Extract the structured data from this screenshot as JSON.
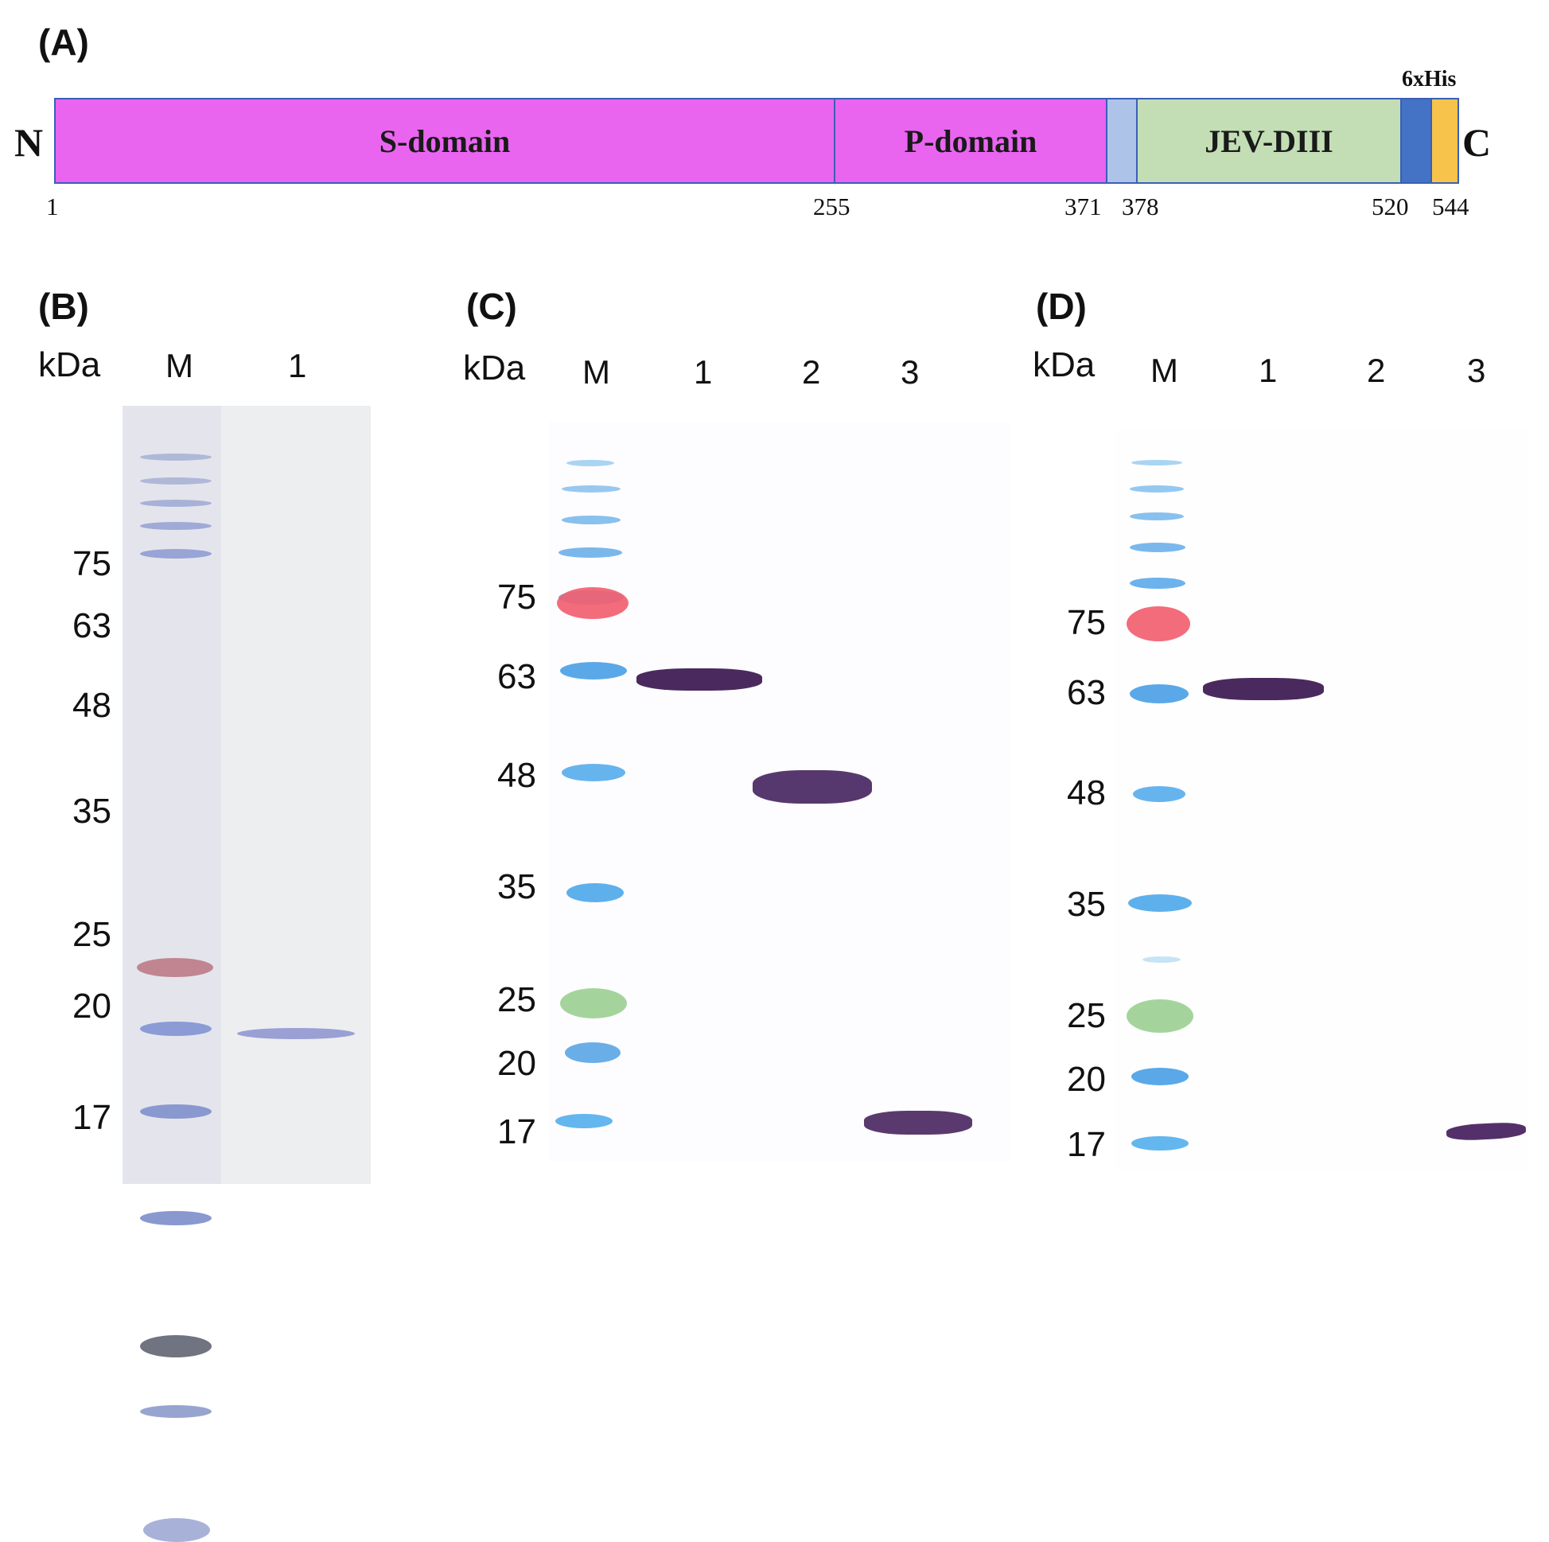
{
  "panel_a": {
    "label": "(A)",
    "n_terminus": "N",
    "c_terminus": "C",
    "tag_label": "6xHis",
    "segments": [
      {
        "name": "S-domain",
        "color": "#e965ef"
      },
      {
        "name": "P-domain",
        "color": "#e965ef"
      },
      {
        "name": "",
        "color": "#aec3e8"
      },
      {
        "name": "JEV-DIII",
        "color": "#c3deb5"
      },
      {
        "name": "",
        "color": "#4472c4"
      },
      {
        "name": "",
        "color": "#f7c34a"
      }
    ],
    "positions": [
      "1",
      "255",
      "371",
      "378",
      "520",
      "544"
    ]
  },
  "panel_b": {
    "label": "(B)",
    "kda_label": "kDa",
    "lanes": [
      "M",
      "1"
    ],
    "markers": [
      "75",
      "63",
      "48",
      "35",
      "25",
      "20",
      "17"
    ]
  },
  "panel_c": {
    "label": "(C)",
    "kda_label": "kDa",
    "lanes": [
      "M",
      "1",
      "2",
      "3"
    ],
    "markers": [
      "75",
      "63",
      "48",
      "35",
      "25",
      "20",
      "17"
    ]
  },
  "panel_d": {
    "label": "(D)",
    "kda_label": "kDa",
    "lanes": [
      "M",
      "1",
      "2",
      "3"
    ],
    "markers": [
      "75",
      "63",
      "48",
      "35",
      "25",
      "20",
      "17"
    ]
  },
  "colors": {
    "domain_border": "#3a5fb8",
    "western_band": "#4a2a5e",
    "coomassie_band": "#7a86c8",
    "ladder_blue": "#4aa6e6",
    "ladder_red": "#ee5a6a",
    "ladder_green": "#9fd29a"
  }
}
